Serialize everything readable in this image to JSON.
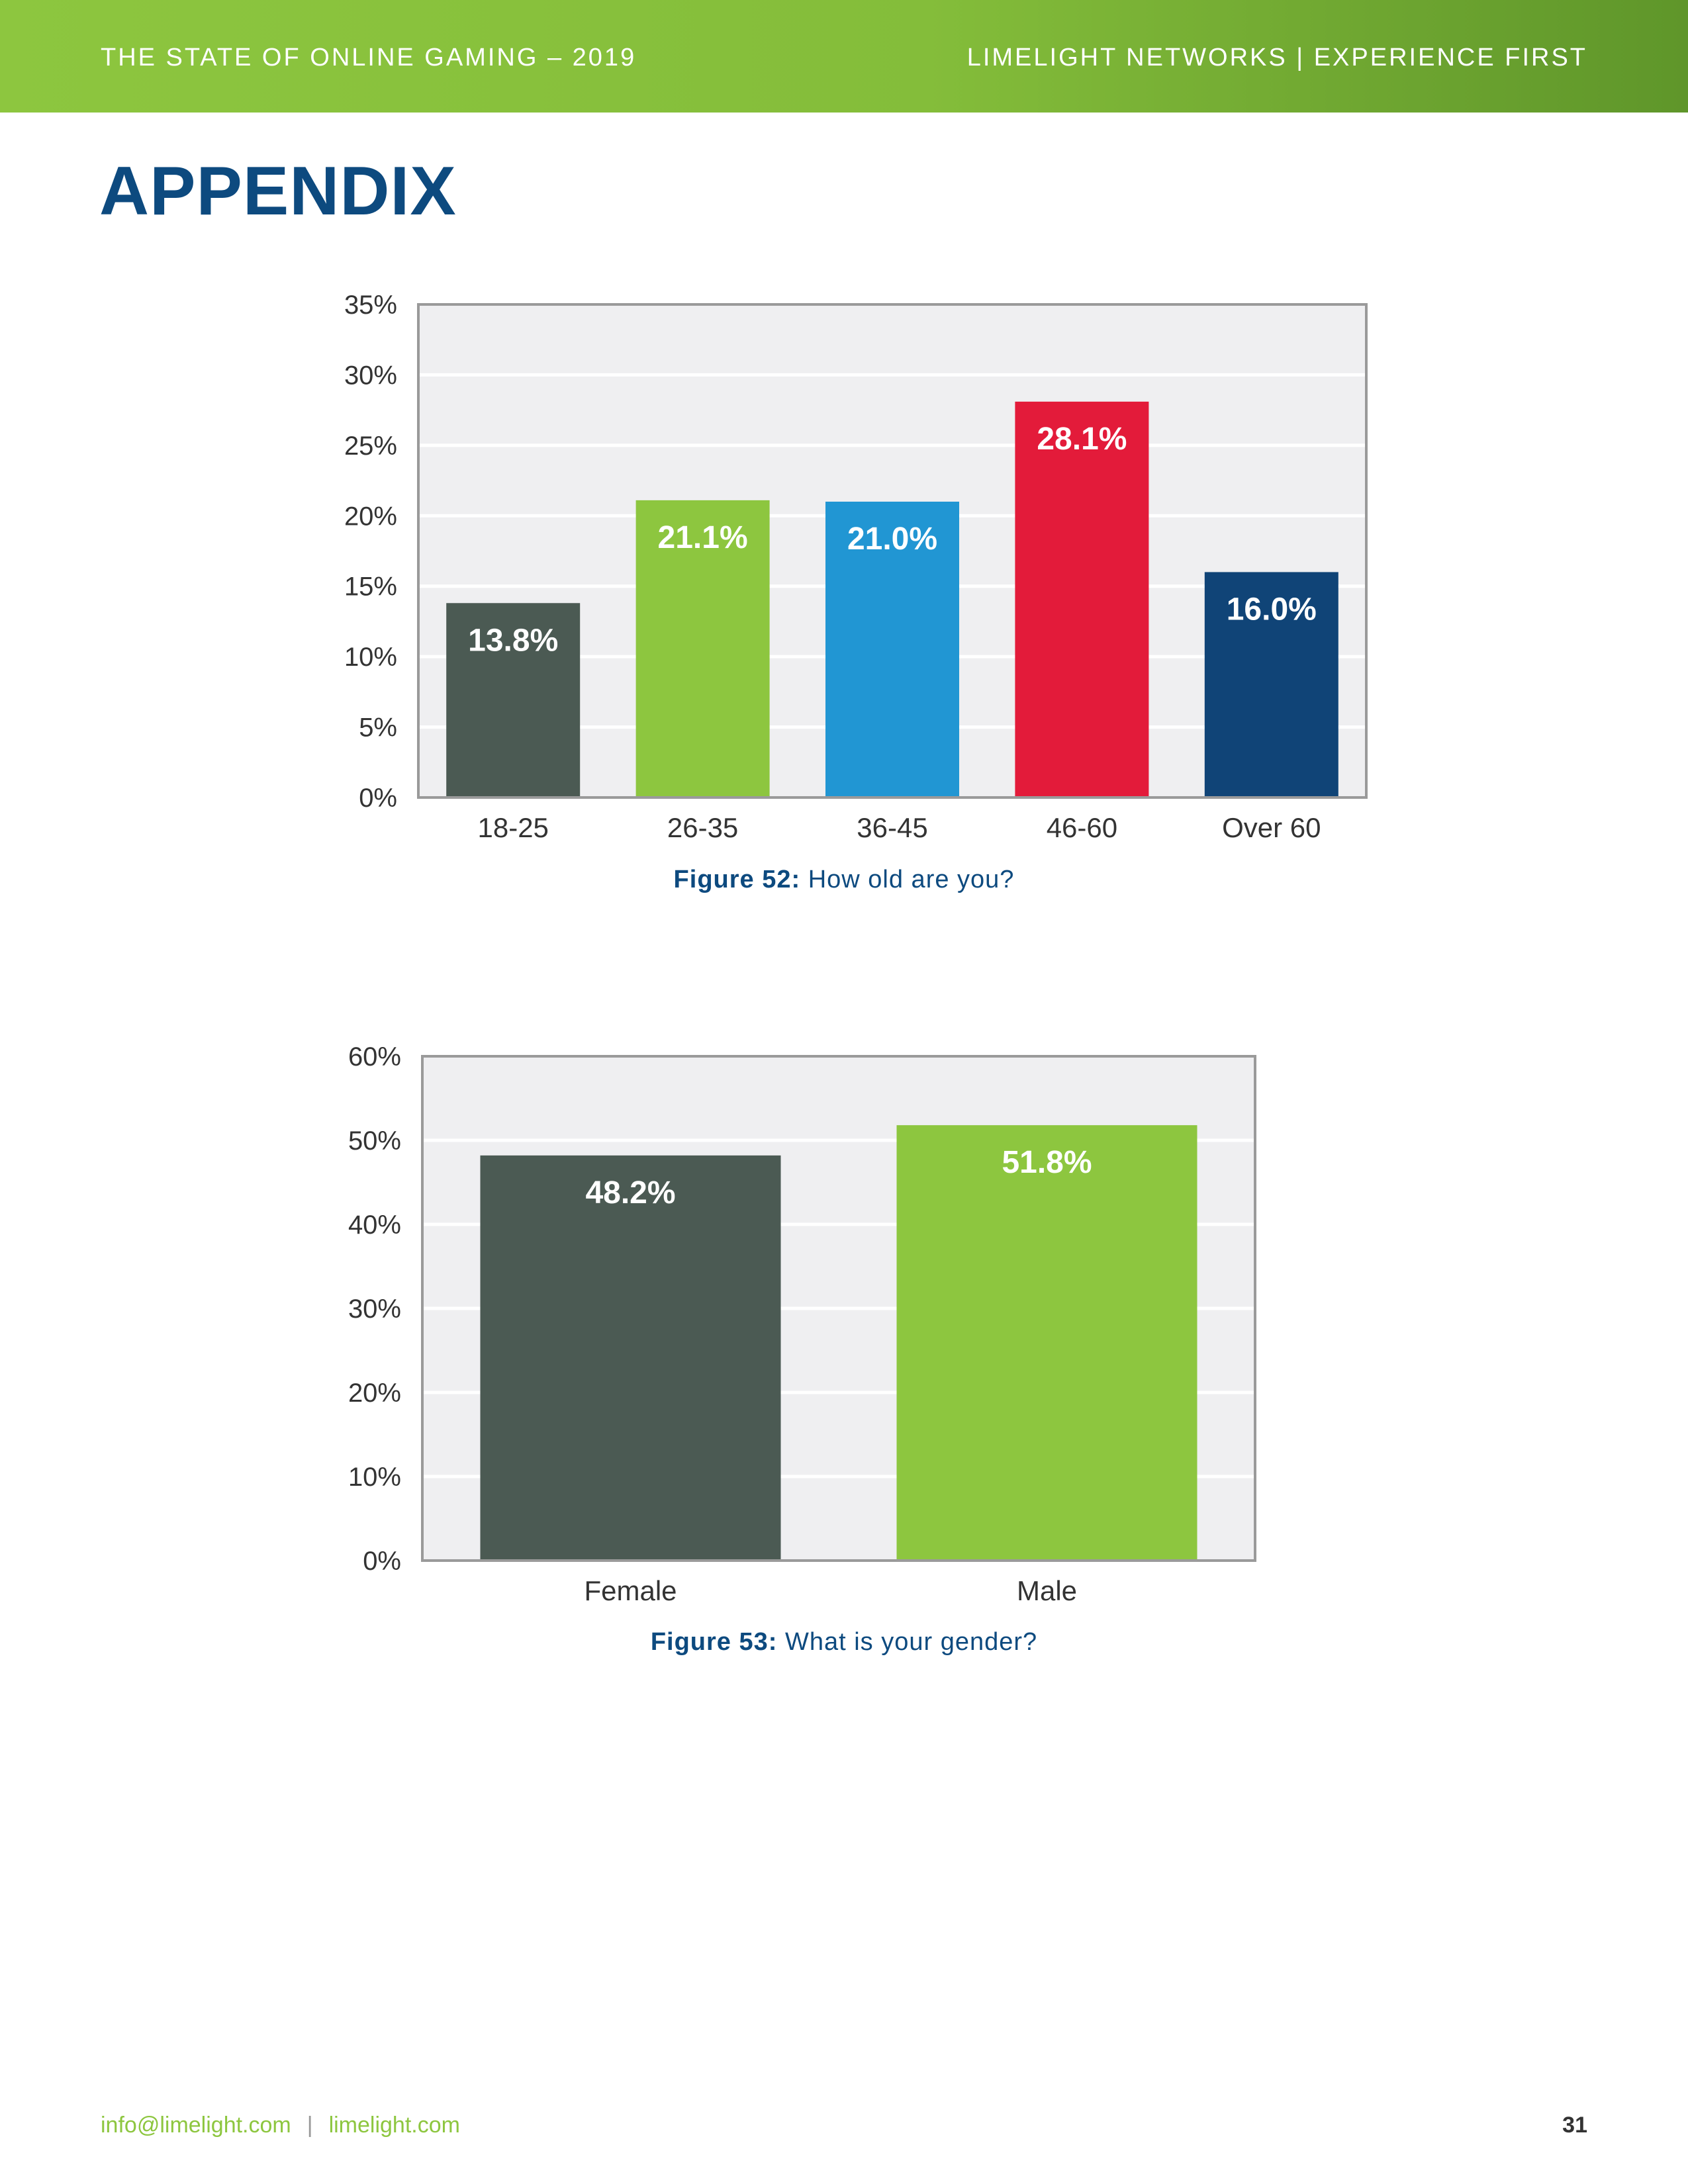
{
  "header": {
    "left_text": "THE STATE OF ONLINE GAMING – 2019",
    "right_text": "LIMELIGHT NETWORKS | EXPERIENCE FIRST"
  },
  "page_title": "APPENDIX",
  "colors": {
    "header_green": "#8dc63f",
    "title_blue": "#0d4a7f",
    "plot_background": "#efeff1",
    "bar_dark_gray": "#4b5a53",
    "bar_green": "#8dc63f",
    "bar_blue": "#2196d3",
    "bar_red": "#e31b3a",
    "bar_navy": "#104477"
  },
  "chart_data": [
    {
      "type": "bar",
      "categories": [
        "18-25",
        "26-35",
        "36-45",
        "46-60",
        "Over 60"
      ],
      "values": [
        13.8,
        21.1,
        21.0,
        28.1,
        16.0
      ],
      "value_labels": [
        "13.8%",
        "21.1%",
        "21.0%",
        "28.1%",
        "16.0%"
      ],
      "bar_colors": [
        "#4b5a53",
        "#8dc63f",
        "#2196d3",
        "#e31b3a",
        "#104477"
      ],
      "ylim": [
        0,
        35
      ],
      "y_ticks": [
        "0%",
        "5%",
        "10%",
        "15%",
        "20%",
        "25%",
        "30%",
        "35%"
      ],
      "grid": true,
      "title": "",
      "caption_prefix": "Figure 52:",
      "caption_text": " How old are you?"
    },
    {
      "type": "bar",
      "categories": [
        "Female",
        "Male"
      ],
      "values": [
        48.2,
        51.8
      ],
      "value_labels": [
        "48.2%",
        "51.8%"
      ],
      "bar_colors": [
        "#4b5a53",
        "#8dc63f"
      ],
      "ylim": [
        0,
        60
      ],
      "y_ticks": [
        "0%",
        "10%",
        "20%",
        "30%",
        "40%",
        "50%",
        "60%"
      ],
      "grid": true,
      "title": "",
      "caption_prefix": "Figure 53:",
      "caption_text": " What is your gender?"
    }
  ],
  "footer": {
    "email": "info@limelight.com",
    "separator": "|",
    "website": "limelight.com",
    "page_number": "31"
  }
}
